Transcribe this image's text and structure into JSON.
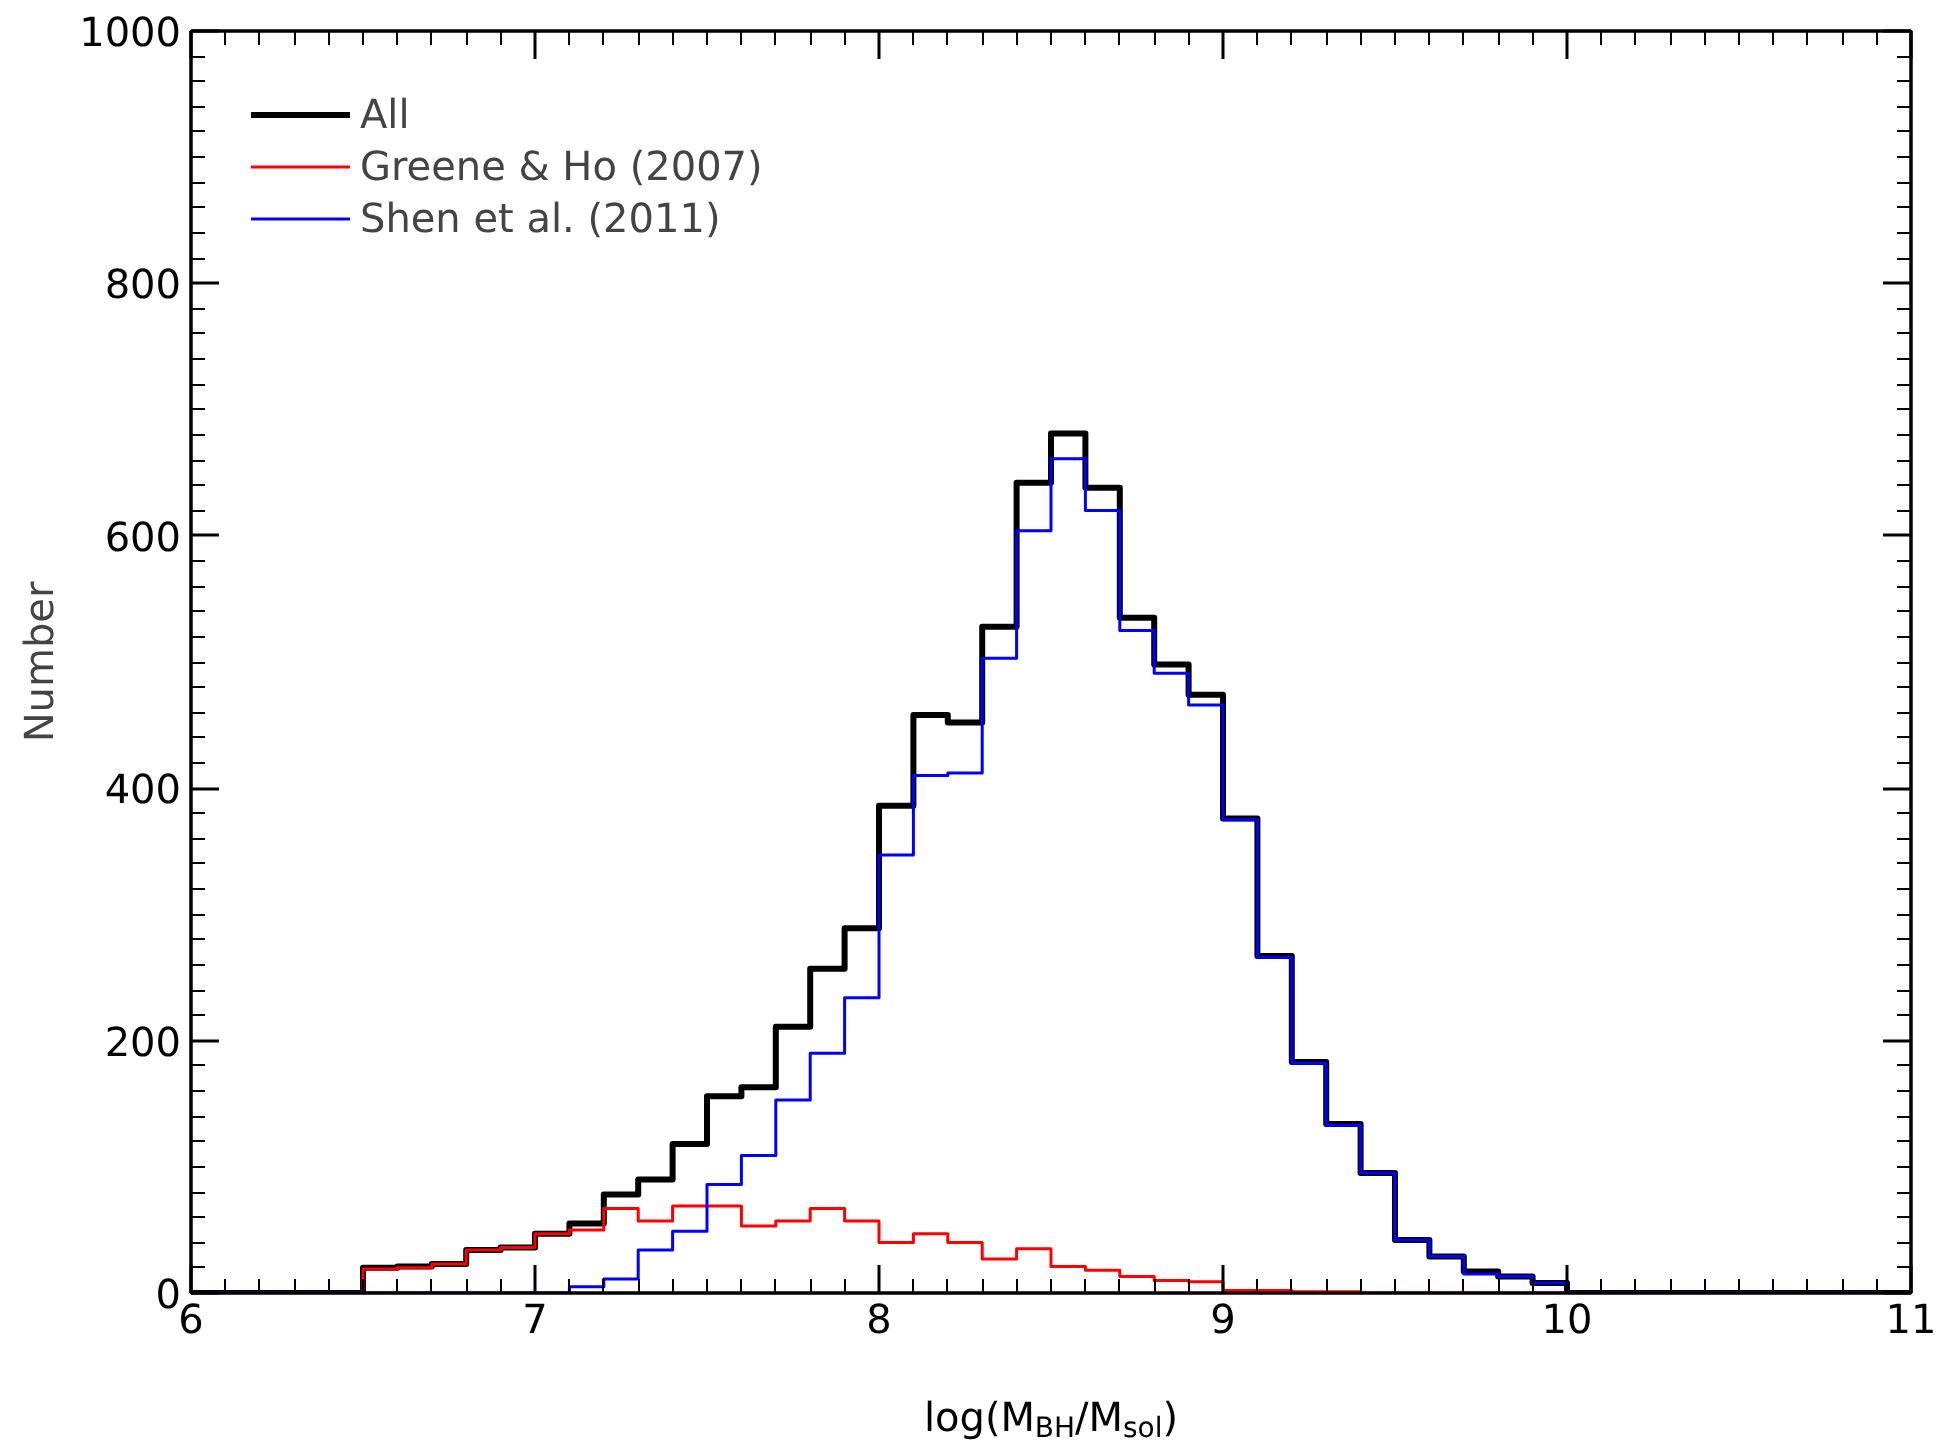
{
  "chart_data": {
    "type": "histogram",
    "xlabel": "log(M$_{BH}$/M$_{sol}$)",
    "ylabel": "Number",
    "bins": [
      6.0,
      6.1,
      6.2,
      6.3,
      6.4,
      6.5,
      6.6,
      6.7,
      6.8,
      6.9,
      7.0,
      7.1,
      7.2,
      7.3,
      7.4,
      7.5,
      7.6,
      7.7,
      7.8,
      7.9,
      8.0,
      8.1,
      8.2,
      8.3,
      8.4,
      8.5,
      8.6,
      8.7,
      8.8,
      8.9,
      9.0,
      9.1,
      9.2,
      9.3,
      9.4,
      9.5,
      9.6,
      9.7,
      9.8,
      9.9,
      10.0,
      10.1,
      10.2,
      10.3,
      10.4,
      10.5,
      10.6,
      10.7,
      10.8,
      10.9,
      11.0
    ],
    "series": [
      {
        "name": "All",
        "color": "#000000",
        "values": [
          0,
          0,
          0,
          0,
          0,
          20,
          21,
          23,
          34,
          36,
          47,
          55,
          78,
          90,
          118,
          156,
          163,
          211,
          257,
          289,
          386,
          458,
          452,
          528,
          642,
          681,
          638,
          535,
          498,
          474,
          376,
          267,
          183,
          134,
          95,
          42,
          29,
          17,
          13,
          8,
          0,
          0,
          0,
          0,
          0,
          0,
          0,
          0,
          0,
          0
        ]
      },
      {
        "name": "Greene & Ho (2007)",
        "color": "#ff0000",
        "values": [
          0,
          0,
          0,
          0,
          0,
          19,
          20,
          23,
          34,
          36,
          47,
          50,
          67,
          57,
          69,
          69,
          53,
          57,
          67,
          57,
          40,
          47,
          40,
          27,
          35,
          21,
          18,
          13,
          10,
          9,
          2,
          2,
          1,
          1,
          0,
          0,
          0,
          0,
          0,
          0,
          0,
          0,
          0,
          0,
          0,
          0,
          0,
          0,
          0,
          0
        ]
      },
      {
        "name": "Shen et al. (2011)",
        "color": "#0000ff",
        "values": [
          0,
          0,
          0,
          0,
          0,
          0,
          0,
          0,
          0,
          0,
          0,
          5,
          11,
          34,
          49,
          86,
          109,
          153,
          190,
          234,
          347,
          410,
          412,
          503,
          604,
          661,
          620,
          525,
          491,
          466,
          375,
          266,
          182,
          133,
          95,
          42,
          29,
          15,
          13,
          8,
          0,
          0,
          0,
          0,
          0,
          0,
          0,
          0,
          0,
          0
        ]
      }
    ],
    "xlim": [
      6,
      11
    ],
    "ylim": [
      0,
      1000
    ],
    "xticks": [
      6,
      7,
      8,
      9,
      10,
      11
    ],
    "yticks": [
      0,
      200,
      400,
      600,
      800,
      1000
    ],
    "grid": false,
    "legend": "top left"
  }
}
